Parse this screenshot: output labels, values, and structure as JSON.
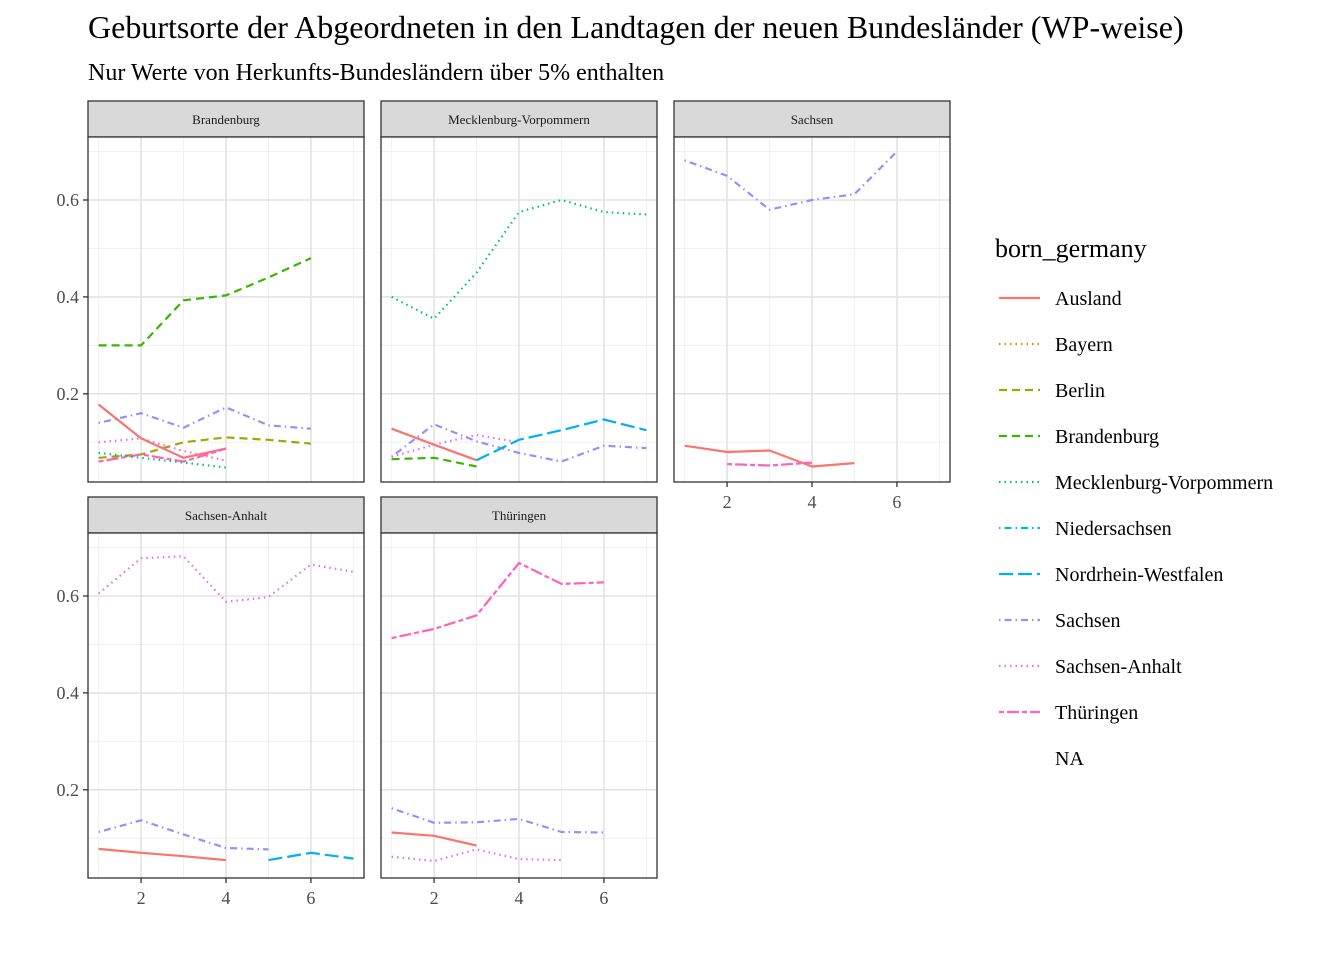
{
  "chart_data": {
    "type": "line",
    "title": "Geburtsorte der Abgeordneten in den Landtagen der neuen Bundesländer (WP-weise)",
    "subtitle": "Nur Werte von Herkunfts-Bundesländern über 5% enthalten",
    "xlabel": "",
    "ylabel": "",
    "xlim": [
      0.75,
      7.25
    ],
    "ylim": [
      0.018,
      0.73
    ],
    "x_ticks": [
      2,
      4,
      6
    ],
    "y_ticks": [
      0.2,
      0.4,
      0.6
    ],
    "legend": {
      "title": "born_germany",
      "placement": "right",
      "entries": [
        {
          "name": "Ausland",
          "color": "#F8766D",
          "dash": "solid"
        },
        {
          "name": "Bayern",
          "color": "#D89000",
          "dash": "dotted"
        },
        {
          "name": "Berlin",
          "color": "#A3A500",
          "dash": "dashed"
        },
        {
          "name": "Brandenburg",
          "color": "#39B600",
          "dash": "dashed"
        },
        {
          "name": "Mecklenburg-Vorpommern",
          "color": "#00BF7D",
          "dash": "dotted"
        },
        {
          "name": "Niedersachsen",
          "color": "#00BFC4",
          "dash": "dotdash"
        },
        {
          "name": "Nordrhein-Westfalen",
          "color": "#00B0F6",
          "dash": "longdash"
        },
        {
          "name": "Sachsen",
          "color": "#9590FF",
          "dash": "dotdash"
        },
        {
          "name": "Sachsen-Anhalt",
          "color": "#E76BF3",
          "dash": "dotted"
        },
        {
          "name": "Thüringen",
          "color": "#FF62BC",
          "dash": "twodash"
        },
        {
          "name": "NA",
          "color": "",
          "dash": "none"
        }
      ]
    },
    "facets": [
      {
        "name": "Brandenburg",
        "series": [
          {
            "name": "Brandenburg",
            "points": [
              [
                1,
                0.3
              ],
              [
                2,
                0.3
              ],
              [
                3,
                0.393
              ],
              [
                4,
                0.403
              ],
              [
                5,
                0.44
              ],
              [
                6,
                0.48
              ]
            ]
          },
          {
            "name": "Sachsen",
            "points": [
              [
                1,
                0.14
              ],
              [
                2,
                0.16
              ],
              [
                3,
                0.13
              ],
              [
                4,
                0.172
              ],
              [
                5,
                0.135
              ],
              [
                6,
                0.128
              ]
            ]
          },
          {
            "name": "Berlin",
            "points": [
              [
                1,
                0.068
              ],
              [
                2,
                0.075
              ],
              [
                3,
                0.1
              ],
              [
                4,
                0.11
              ],
              [
                5,
                0.105
              ],
              [
                6,
                0.097
              ]
            ]
          },
          {
            "name": "Sachsen-Anhalt",
            "points": [
              [
                1,
                0.1
              ],
              [
                2,
                0.108
              ],
              [
                3,
                0.082
              ],
              [
                4,
                0.062
              ]
            ]
          },
          {
            "name": "Ausland",
            "points": [
              [
                1,
                0.178
              ],
              [
                2,
                0.108
              ],
              [
                3,
                0.068
              ],
              [
                4,
                0.087
              ]
            ]
          },
          {
            "name": "Thüringen",
            "points": [
              [
                1,
                0.06
              ],
              [
                2,
                0.075
              ],
              [
                3,
                0.06
              ],
              [
                4,
                0.087
              ]
            ]
          },
          {
            "name": "Mecklenburg-Vorpommern",
            "points": [
              [
                1,
                0.078
              ],
              [
                2,
                0.068
              ],
              [
                3,
                0.058
              ],
              [
                4,
                0.048
              ]
            ]
          }
        ]
      },
      {
        "name": "Mecklenburg-Vorpommern",
        "series": [
          {
            "name": "Mecklenburg-Vorpommern",
            "points": [
              [
                1,
                0.4
              ],
              [
                2,
                0.355
              ],
              [
                3,
                0.45
              ],
              [
                4,
                0.575
              ],
              [
                5,
                0.6
              ],
              [
                6,
                0.575
              ],
              [
                7,
                0.57
              ]
            ]
          },
          {
            "name": "Sachsen",
            "points": [
              [
                1,
                0.07
              ],
              [
                2,
                0.137
              ],
              [
                3,
                0.102
              ],
              [
                4,
                0.078
              ],
              [
                5,
                0.06
              ],
              [
                6,
                0.093
              ],
              [
                7,
                0.088
              ]
            ]
          },
          {
            "name": "Sachsen-Anhalt",
            "points": [
              [
                1,
                0.07
              ],
              [
                2,
                0.095
              ],
              [
                3,
                0.115
              ],
              [
                4,
                0.1
              ]
            ]
          },
          {
            "name": "Ausland",
            "points": [
              [
                1,
                0.128
              ],
              [
                2,
                0.095
              ],
              [
                3,
                0.063
              ]
            ]
          },
          {
            "name": "Brandenburg",
            "points": [
              [
                1,
                0.065
              ],
              [
                2,
                0.068
              ],
              [
                3,
                0.05
              ]
            ]
          },
          {
            "name": "Nordrhein-Westfalen",
            "points": [
              [
                3,
                0.063
              ],
              [
                4,
                0.105
              ],
              [
                5,
                0.125
              ],
              [
                6,
                0.147
              ],
              [
                7,
                0.125
              ]
            ]
          }
        ]
      },
      {
        "name": "Sachsen",
        "series": [
          {
            "name": "Sachsen",
            "points": [
              [
                1,
                0.682
              ],
              [
                2,
                0.65
              ],
              [
                3,
                0.58
              ],
              [
                4,
                0.6
              ],
              [
                5,
                0.612
              ],
              [
                6,
                0.7
              ]
            ]
          },
          {
            "name": "Ausland",
            "points": [
              [
                1,
                0.093
              ],
              [
                2,
                0.08
              ],
              [
                3,
                0.083
              ],
              [
                4,
                0.05
              ],
              [
                5,
                0.057
              ]
            ]
          },
          {
            "name": "Thüringen",
            "points": [
              [
                2,
                0.055
              ],
              [
                3,
                0.052
              ],
              [
                4,
                0.058
              ]
            ]
          }
        ]
      },
      {
        "name": "Sachsen-Anhalt",
        "series": [
          {
            "name": "Sachsen-Anhalt",
            "points": [
              [
                1,
                0.605
              ],
              [
                2,
                0.678
              ],
              [
                3,
                0.682
              ],
              [
                4,
                0.588
              ],
              [
                5,
                0.598
              ],
              [
                6,
                0.665
              ],
              [
                7,
                0.65
              ]
            ]
          },
          {
            "name": "Sachsen",
            "points": [
              [
                1,
                0.113
              ],
              [
                2,
                0.137
              ],
              [
                3,
                0.108
              ],
              [
                4,
                0.08
              ],
              [
                5,
                0.077
              ]
            ]
          },
          {
            "name": "Ausland",
            "points": [
              [
                1,
                0.078
              ],
              [
                2,
                0.07
              ],
              [
                3,
                0.063
              ],
              [
                4,
                0.055
              ]
            ]
          },
          {
            "name": "Nordrhein-Westfalen",
            "points": [
              [
                5,
                0.055
              ],
              [
                6,
                0.07
              ],
              [
                7,
                0.058
              ]
            ]
          }
        ]
      },
      {
        "name": "Thüringen",
        "series": [
          {
            "name": "Thüringen",
            "points": [
              [
                1,
                0.513
              ],
              [
                2,
                0.532
              ],
              [
                3,
                0.56
              ],
              [
                4,
                0.668
              ],
              [
                5,
                0.625
              ],
              [
                6,
                0.628
              ]
            ]
          },
          {
            "name": "Sachsen",
            "points": [
              [
                1,
                0.162
              ],
              [
                2,
                0.132
              ],
              [
                3,
                0.133
              ],
              [
                4,
                0.14
              ],
              [
                5,
                0.113
              ],
              [
                6,
                0.112
              ]
            ]
          },
          {
            "name": "Ausland",
            "points": [
              [
                1,
                0.112
              ],
              [
                2,
                0.105
              ],
              [
                3,
                0.085
              ]
            ]
          },
          {
            "name": "Sachsen-Anhalt",
            "points": [
              [
                1,
                0.062
              ],
              [
                2,
                0.053
              ],
              [
                3,
                0.077
              ],
              [
                4,
                0.057
              ],
              [
                5,
                0.055
              ]
            ]
          }
        ]
      }
    ]
  }
}
